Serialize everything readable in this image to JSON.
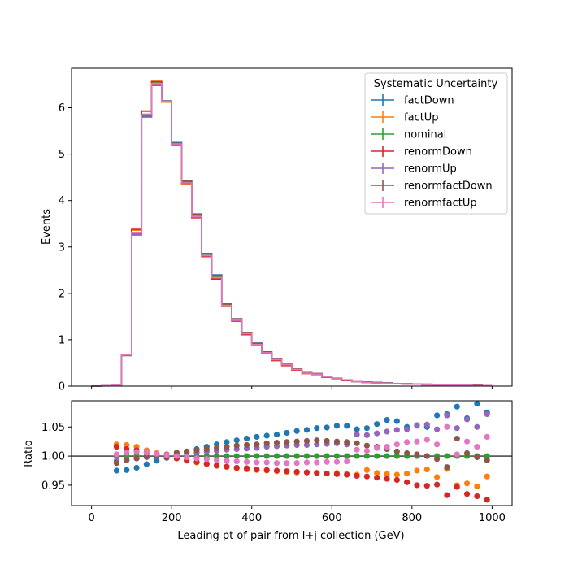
{
  "chart_data": [
    {
      "type": "line",
      "panel": "main",
      "ylabel": "Events",
      "xlim": [
        -50,
        1050
      ],
      "ylim": [
        0,
        6.85
      ],
      "yticks": [
        0,
        1,
        2,
        3,
        4,
        5,
        6
      ],
      "xticks": [
        0,
        200,
        400,
        600,
        800,
        1000
      ],
      "legend_title": "Systematic Uncertainty",
      "legend_position": "top-right",
      "bin_edges": [
        0,
        25,
        50,
        75,
        100,
        125,
        150,
        175,
        200,
        225,
        250,
        275,
        300,
        325,
        350,
        375,
        400,
        425,
        450,
        475,
        500,
        525,
        550,
        575,
        600,
        625,
        650,
        675,
        700,
        725,
        750,
        775,
        800,
        825,
        850,
        875,
        900,
        925,
        950,
        975,
        1000
      ],
      "series": [
        {
          "name": "factDown",
          "color": "#1f77b4",
          "values": [
            0,
            0.01,
            0.02,
            0.66,
            3.26,
            5.8,
            6.48,
            6.15,
            5.25,
            4.43,
            3.71,
            2.86,
            2.4,
            1.77,
            1.45,
            1.16,
            0.93,
            0.74,
            0.58,
            0.47,
            0.37,
            0.29,
            0.27,
            0.21,
            0.17,
            0.13,
            0.1,
            0.09,
            0.08,
            0.07,
            0.05,
            0.05,
            0.04,
            0.04,
            0.03,
            0.03,
            0.02,
            0.02,
            0.02,
            0.01
          ]
        },
        {
          "name": "factUp",
          "color": "#ff7f0e",
          "values": [
            0,
            0.01,
            0.02,
            0.68,
            3.36,
            5.92,
            6.57,
            6.12,
            5.2,
            4.36,
            3.63,
            2.8,
            2.32,
            1.73,
            1.41,
            1.12,
            0.89,
            0.71,
            0.56,
            0.45,
            0.35,
            0.28,
            0.26,
            0.2,
            0.16,
            0.12,
            0.1,
            0.08,
            0.07,
            0.06,
            0.05,
            0.04,
            0.04,
            0.03,
            0.03,
            0.02,
            0.02,
            0.02,
            0.01,
            0.01
          ]
        },
        {
          "name": "nominal",
          "color": "#2ca02c",
          "values": [
            0,
            0.01,
            0.02,
            0.67,
            3.31,
            5.86,
            6.53,
            6.14,
            5.22,
            4.39,
            3.66,
            2.82,
            2.35,
            1.75,
            1.43,
            1.14,
            0.91,
            0.72,
            0.57,
            0.46,
            0.36,
            0.28,
            0.26,
            0.2,
            0.16,
            0.13,
            0.1,
            0.08,
            0.07,
            0.06,
            0.05,
            0.04,
            0.04,
            0.03,
            0.03,
            0.02,
            0.02,
            0.02,
            0.01,
            0.01
          ]
        },
        {
          "name": "renormDown",
          "color": "#d62728",
          "values": [
            0,
            0.01,
            0.02,
            0.68,
            3.38,
            5.93,
            6.56,
            6.13,
            5.21,
            4.37,
            3.63,
            2.79,
            2.31,
            1.72,
            1.4,
            1.11,
            0.88,
            0.7,
            0.55,
            0.44,
            0.35,
            0.27,
            0.25,
            0.19,
            0.16,
            0.12,
            0.1,
            0.08,
            0.07,
            0.06,
            0.05,
            0.04,
            0.04,
            0.03,
            0.03,
            0.02,
            0.02,
            0.02,
            0.01,
            0.01
          ]
        },
        {
          "name": "renormUp",
          "color": "#9467bd",
          "values": [
            0,
            0.01,
            0.02,
            0.66,
            3.26,
            5.82,
            6.5,
            6.14,
            5.23,
            4.41,
            3.69,
            2.85,
            2.38,
            1.77,
            1.45,
            1.16,
            0.92,
            0.73,
            0.58,
            0.47,
            0.37,
            0.29,
            0.27,
            0.21,
            0.17,
            0.13,
            0.1,
            0.09,
            0.08,
            0.07,
            0.05,
            0.05,
            0.04,
            0.04,
            0.03,
            0.03,
            0.02,
            0.02,
            0.02,
            0.01
          ]
        },
        {
          "name": "renormfactDown",
          "color": "#8c564b",
          "values": [
            0,
            0.01,
            0.02,
            0.66,
            3.29,
            5.84,
            6.51,
            6.14,
            5.23,
            4.42,
            3.7,
            2.85,
            2.39,
            1.77,
            1.45,
            1.16,
            0.92,
            0.73,
            0.58,
            0.47,
            0.37,
            0.29,
            0.27,
            0.21,
            0.17,
            0.13,
            0.1,
            0.09,
            0.08,
            0.07,
            0.05,
            0.05,
            0.04,
            0.04,
            0.03,
            0.03,
            0.02,
            0.02,
            0.02,
            0.01
          ]
        },
        {
          "name": "renormfactUp",
          "color": "#e377c2",
          "values": [
            0,
            0.01,
            0.02,
            0.67,
            3.3,
            5.85,
            6.52,
            6.14,
            5.22,
            4.38,
            3.65,
            2.81,
            2.34,
            1.74,
            1.42,
            1.13,
            0.9,
            0.72,
            0.57,
            0.46,
            0.36,
            0.28,
            0.26,
            0.2,
            0.16,
            0.13,
            0.1,
            0.08,
            0.07,
            0.06,
            0.05,
            0.04,
            0.04,
            0.03,
            0.03,
            0.02,
            0.02,
            0.02,
            0.01,
            0.01
          ]
        }
      ]
    },
    {
      "type": "scatter",
      "panel": "ratio",
      "xlabel": "Leading pt of pair from l+j collection (GeV)",
      "ylabel": "Ratio",
      "xlim": [
        -50,
        1050
      ],
      "ylim": [
        0.915,
        1.095
      ],
      "yticks": [
        0.95,
        1.0,
        1.05
      ],
      "ytick_labels": [
        "0.95",
        "1.00",
        "1.05"
      ],
      "xticks": [
        0,
        200,
        400,
        600,
        800,
        1000
      ],
      "reference_line": 1.0,
      "x": [
        62.5,
        87.5,
        112.5,
        137.5,
        162.5,
        187.5,
        212.5,
        237.5,
        262.5,
        287.5,
        312.5,
        337.5,
        362.5,
        387.5,
        412.5,
        437.5,
        462.5,
        487.5,
        512.5,
        537.5,
        562.5,
        587.5,
        612.5,
        637.5,
        662.5,
        687.5,
        712.5,
        737.5,
        762.5,
        787.5,
        812.5,
        837.5,
        862.5,
        887.5,
        912.5,
        937.5,
        962.5,
        987.5
      ],
      "series": [
        {
          "name": "factDown",
          "color": "#1f77b4",
          "values": [
            0.975,
            0.976,
            0.98,
            0.986,
            0.992,
            0.997,
            1.002,
            1.007,
            1.012,
            1.016,
            1.02,
            1.024,
            1.027,
            1.03,
            1.033,
            1.035,
            1.037,
            1.04,
            1.043,
            1.045,
            1.048,
            1.049,
            1.052,
            1.052,
            1.046,
            1.048,
            1.055,
            1.062,
            1.06,
            1.05,
            1.053,
            1.05,
            1.07,
            1.072,
            1.085,
            1.065,
            1.09,
            1.075
          ]
        },
        {
          "name": "factUp",
          "color": "#ff7f0e",
          "values": [
            1.02,
            1.019,
            1.016,
            1.01,
            1.005,
            1.0,
            0.996,
            0.992,
            0.989,
            0.986,
            0.983,
            0.981,
            0.979,
            0.977,
            0.976,
            0.975,
            0.974,
            0.973,
            0.972,
            0.972,
            0.971,
            0.97,
            0.971,
            0.969,
            0.968,
            0.976,
            0.971,
            0.969,
            0.968,
            0.97,
            0.975,
            0.977,
            0.964,
            0.978,
            0.95,
            0.953,
            0.948,
            0.965
          ]
        },
        {
          "name": "nominal",
          "color": "#2ca02c",
          "values": [
            1.0,
            1.0,
            1.0,
            1.0,
            1.0,
            1.0,
            1.0,
            1.0,
            1.0,
            1.0,
            1.0,
            1.0,
            1.0,
            1.0,
            1.0,
            1.0,
            1.0,
            1.0,
            1.0,
            1.0,
            1.0,
            1.0,
            1.0,
            1.0,
            1.0,
            1.0,
            1.0,
            1.0,
            1.0,
            1.0,
            1.0,
            1.0,
            1.0,
            1.0,
            1.0,
            1.0,
            1.0,
            1.0
          ]
        },
        {
          "name": "renormDown",
          "color": "#d62728",
          "values": [
            1.016,
            1.012,
            1.01,
            1.006,
            1.002,
            0.999,
            0.996,
            0.993,
            0.99,
            0.987,
            0.984,
            0.982,
            0.98,
            0.979,
            0.977,
            0.976,
            0.975,
            0.974,
            0.973,
            0.972,
            0.971,
            0.97,
            0.969,
            0.968,
            0.966,
            0.965,
            0.963,
            0.961,
            0.959,
            0.955,
            0.95,
            0.949,
            0.951,
            0.933,
            0.947,
            0.935,
            0.931,
            0.925
          ]
        },
        {
          "name": "renormUp",
          "color": "#9467bd",
          "values": [
            0.992,
            0.994,
            0.996,
            0.998,
            1.0,
            1.001,
            1.003,
            1.005,
            1.006,
            1.008,
            1.009,
            1.011,
            1.012,
            1.013,
            1.014,
            1.016,
            1.017,
            1.018,
            1.019,
            1.019,
            1.02,
            1.021,
            1.022,
            1.02,
            1.037,
            1.036,
            1.039,
            1.042,
            1.045,
            1.046,
            1.052,
            1.054,
            1.046,
            1.07,
            1.048,
            1.063,
            1.05,
            1.072
          ]
        },
        {
          "name": "renormfactDown",
          "color": "#8c564b",
          "values": [
            0.988,
            0.993,
            0.996,
            0.999,
            1.001,
            1.003,
            1.006,
            1.008,
            1.01,
            1.012,
            1.014,
            1.016,
            1.018,
            1.019,
            1.02,
            1.022,
            1.023,
            1.024,
            1.025,
            1.026,
            1.027,
            1.026,
            1.025,
            1.024,
            1.022,
            1.018,
            1.016,
            1.012,
            1.008,
            1.005,
            1.003,
            1.0,
            0.995,
            0.981,
            1.03,
            1.005,
            0.998,
            0.993
          ]
        },
        {
          "name": "renormfactUp",
          "color": "#e377c2",
          "values": [
            1.003,
            1.006,
            1.007,
            1.006,
            1.004,
            1.002,
            1.0,
            0.998,
            0.996,
            0.995,
            0.993,
            0.992,
            0.991,
            0.99,
            0.989,
            0.989,
            0.988,
            0.988,
            0.988,
            0.989,
            0.989,
            0.99,
            0.99,
            0.991,
            1.011,
            1.009,
            1.014,
            1.016,
            1.02,
            1.024,
            1.025,
            1.028,
            1.02,
            1.05,
            1.003,
            1.025,
            1.016,
            1.033
          ]
        }
      ]
    }
  ]
}
